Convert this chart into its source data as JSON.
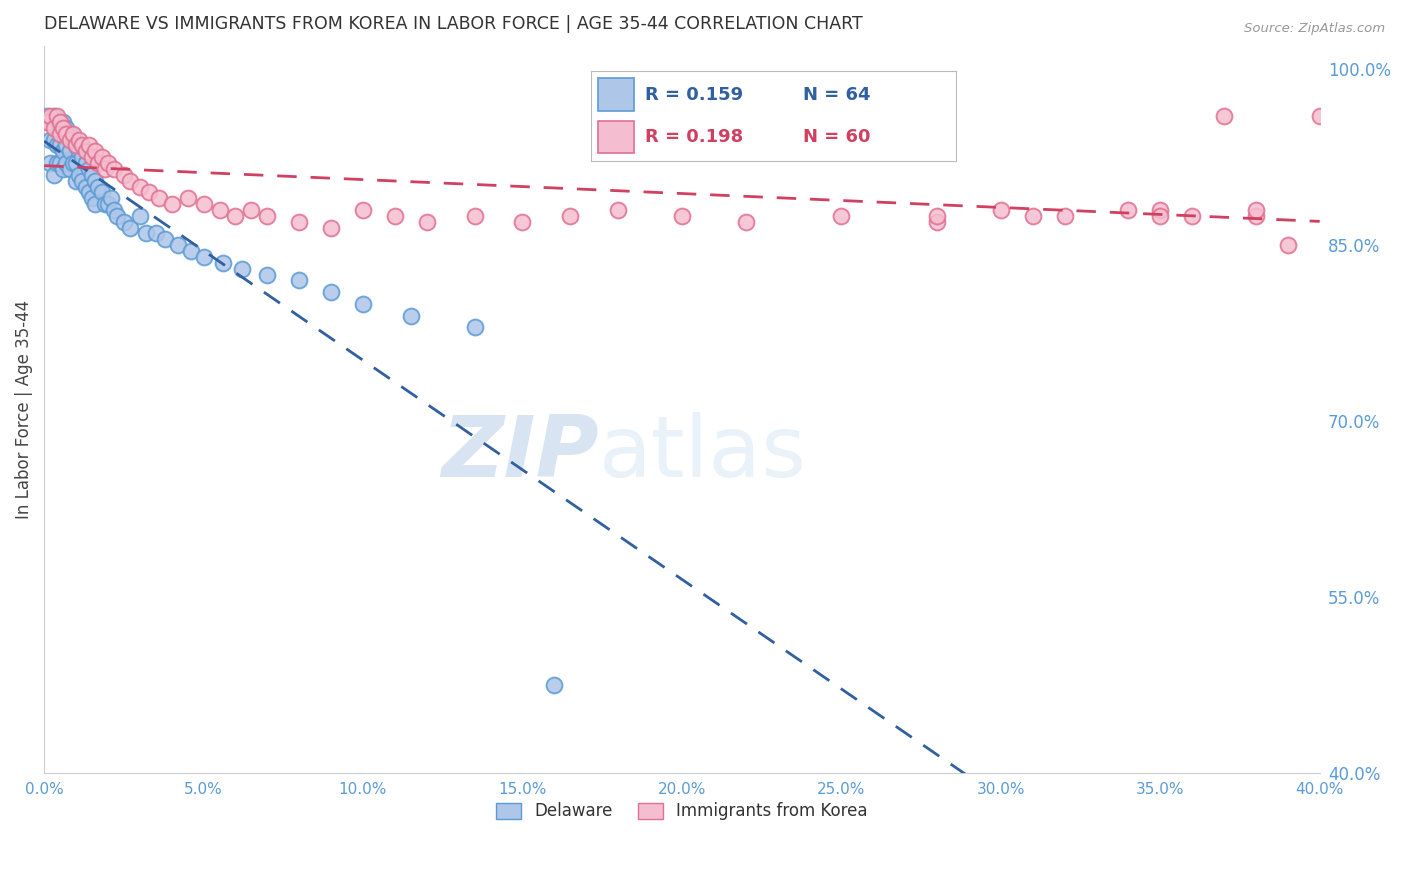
{
  "title": "DELAWARE VS IMMIGRANTS FROM KOREA IN LABOR FORCE | AGE 35-44 CORRELATION CHART",
  "source": "Source: ZipAtlas.com",
  "ylabel": "In Labor Force | Age 35-44",
  "xlim": [
    0.0,
    0.4
  ],
  "ylim": [
    0.4,
    1.02
  ],
  "ytick_values": [
    0.4,
    0.55,
    0.7,
    0.85,
    1.0
  ],
  "ytick_labels": [
    "40.0%",
    "55.0%",
    "70.0%",
    "85.0%",
    "100.0%"
  ],
  "xtick_values": [
    0.0,
    0.05,
    0.1,
    0.15,
    0.2,
    0.25,
    0.3,
    0.35,
    0.4
  ],
  "xtick_labels": [
    "0.0%",
    "5.0%",
    "10.0%",
    "15.0%",
    "20.0%",
    "25.0%",
    "30.0%",
    "35.0%",
    "40.0%"
  ],
  "blue_color": "#aec6e8",
  "blue_edge_color": "#5b9bd5",
  "pink_color": "#f5bdd0",
  "pink_edge_color": "#e07090",
  "blue_line_color": "#3060a0",
  "pink_line_color": "#d04060",
  "grid_color": "#cccccc",
  "axis_color": "#5b9bd5",
  "title_color": "#333333",
  "watermark_zip": "ZIP",
  "watermark_atlas": "atlas",
  "watermark_color": "#dce8f5",
  "blue_r": "R = 0.159",
  "blue_n": "N = 64",
  "pink_r": "R = 0.198",
  "pink_n": "N = 60",
  "blue_x": [
    0.001,
    0.002,
    0.002,
    0.003,
    0.003,
    0.003,
    0.004,
    0.004,
    0.004,
    0.005,
    0.005,
    0.005,
    0.006,
    0.006,
    0.006,
    0.006,
    0.007,
    0.007,
    0.007,
    0.008,
    0.008,
    0.008,
    0.009,
    0.009,
    0.01,
    0.01,
    0.01,
    0.011,
    0.011,
    0.012,
    0.012,
    0.013,
    0.013,
    0.014,
    0.014,
    0.015,
    0.015,
    0.016,
    0.016,
    0.017,
    0.018,
    0.019,
    0.02,
    0.021,
    0.022,
    0.023,
    0.025,
    0.027,
    0.03,
    0.032,
    0.035,
    0.038,
    0.042,
    0.046,
    0.05,
    0.056,
    0.062,
    0.07,
    0.08,
    0.09,
    0.1,
    0.115,
    0.135,
    0.16
  ],
  "blue_y": [
    0.96,
    0.94,
    0.92,
    0.96,
    0.94,
    0.91,
    0.955,
    0.935,
    0.92,
    0.95,
    0.935,
    0.92,
    0.955,
    0.945,
    0.93,
    0.915,
    0.95,
    0.935,
    0.92,
    0.945,
    0.93,
    0.915,
    0.94,
    0.92,
    0.935,
    0.92,
    0.905,
    0.93,
    0.91,
    0.925,
    0.905,
    0.92,
    0.9,
    0.915,
    0.895,
    0.91,
    0.89,
    0.905,
    0.885,
    0.9,
    0.895,
    0.885,
    0.885,
    0.89,
    0.88,
    0.875,
    0.87,
    0.865,
    0.875,
    0.86,
    0.86,
    0.855,
    0.85,
    0.845,
    0.84,
    0.835,
    0.83,
    0.825,
    0.82,
    0.81,
    0.8,
    0.79,
    0.78,
    0.475
  ],
  "pink_x": [
    0.001,
    0.002,
    0.003,
    0.004,
    0.005,
    0.005,
    0.006,
    0.007,
    0.008,
    0.009,
    0.01,
    0.011,
    0.012,
    0.013,
    0.014,
    0.015,
    0.016,
    0.017,
    0.018,
    0.019,
    0.02,
    0.022,
    0.025,
    0.027,
    0.03,
    0.033,
    0.036,
    0.04,
    0.045,
    0.05,
    0.055,
    0.06,
    0.065,
    0.07,
    0.08,
    0.09,
    0.1,
    0.11,
    0.12,
    0.135,
    0.15,
    0.165,
    0.18,
    0.2,
    0.22,
    0.25,
    0.28,
    0.31,
    0.35,
    0.38,
    0.28,
    0.3,
    0.32,
    0.34,
    0.36,
    0.38,
    0.4,
    0.35,
    0.37,
    0.39
  ],
  "pink_y": [
    0.955,
    0.96,
    0.95,
    0.96,
    0.955,
    0.945,
    0.95,
    0.945,
    0.94,
    0.945,
    0.935,
    0.94,
    0.935,
    0.93,
    0.935,
    0.925,
    0.93,
    0.92,
    0.925,
    0.915,
    0.92,
    0.915,
    0.91,
    0.905,
    0.9,
    0.895,
    0.89,
    0.885,
    0.89,
    0.885,
    0.88,
    0.875,
    0.88,
    0.875,
    0.87,
    0.865,
    0.88,
    0.875,
    0.87,
    0.875,
    0.87,
    0.875,
    0.88,
    0.875,
    0.87,
    0.875,
    0.87,
    0.875,
    0.88,
    0.875,
    0.875,
    0.88,
    0.875,
    0.88,
    0.875,
    0.88,
    0.96,
    0.875,
    0.96,
    0.85
  ]
}
